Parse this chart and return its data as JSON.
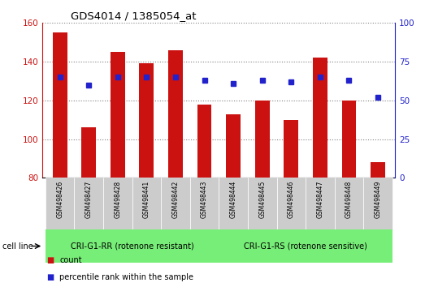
{
  "title": "GDS4014 / 1385054_at",
  "samples": [
    "GSM498426",
    "GSM498427",
    "GSM498428",
    "GSM498441",
    "GSM498442",
    "GSM498443",
    "GSM498444",
    "GSM498445",
    "GSM498446",
    "GSM498447",
    "GSM498448",
    "GSM498449"
  ],
  "counts": [
    155,
    106,
    145,
    139,
    146,
    118,
    113,
    120,
    110,
    142,
    120,
    88
  ],
  "percentiles": [
    65,
    60,
    65,
    65,
    65,
    63,
    61,
    63,
    62,
    65,
    63,
    52
  ],
  "ylim_left": [
    80,
    160
  ],
  "ylim_right": [
    0,
    100
  ],
  "yticks_left": [
    80,
    100,
    120,
    140,
    160
  ],
  "yticks_right": [
    0,
    25,
    50,
    75,
    100
  ],
  "bar_color": "#cc1111",
  "marker_color": "#2222cc",
  "group1_label": "CRI-G1-RR (rotenone resistant)",
  "group2_label": "CRI-G1-RS (rotenone sensitive)",
  "group1_count": 6,
  "group2_count": 6,
  "group_bg_color": "#77ee77",
  "label_bg_color": "#cccccc",
  "legend_count_label": "count",
  "legend_pct_label": "percentile rank within the sample",
  "cell_line_label": "cell line"
}
